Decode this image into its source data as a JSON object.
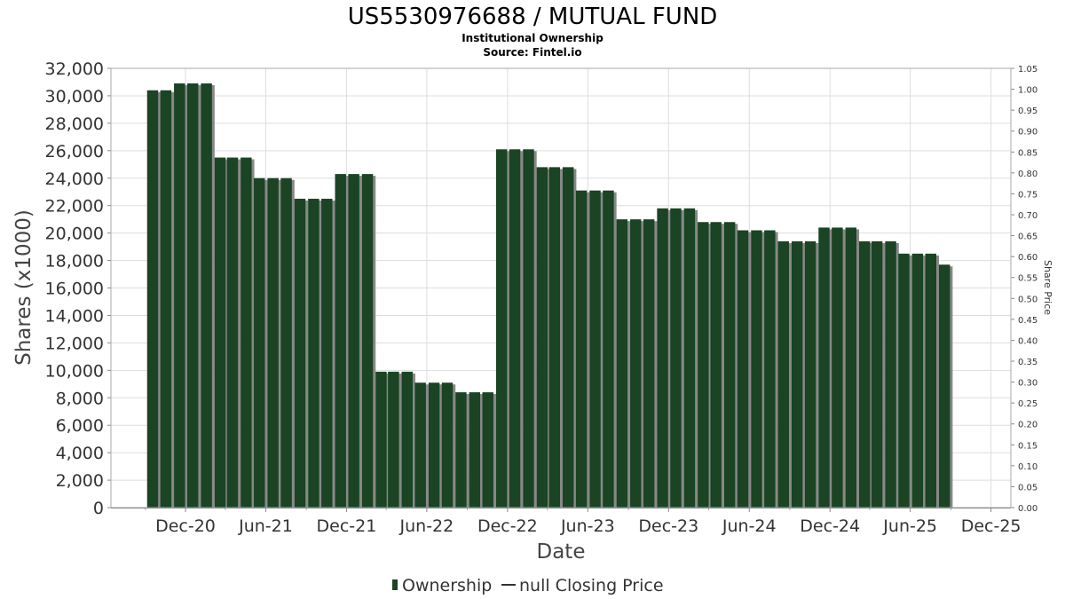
{
  "chart_data": {
    "type": "bar",
    "title": "US5530976688 / MUTUAL FUND",
    "subtitle": "Institutional Ownership",
    "source": "Source: Fintel.io",
    "xlabel": "Date",
    "ylabel": "Shares (x1000)",
    "y2label": "Share Price",
    "ylim": [
      0,
      32000
    ],
    "y2lim": [
      0,
      1.05
    ],
    "yticks": [
      "0",
      "2,000",
      "4,000",
      "6,000",
      "8,000",
      "10,000",
      "12,000",
      "14,000",
      "16,000",
      "18,000",
      "20,000",
      "22,000",
      "24,000",
      "26,000",
      "28,000",
      "30,000",
      "32,000"
    ],
    "y2ticks": [
      "0.00",
      "0.05",
      "0.10",
      "0.15",
      "0.20",
      "0.25",
      "0.30",
      "0.35",
      "0.40",
      "0.45",
      "0.50",
      "0.55",
      "0.60",
      "0.65",
      "0.70",
      "0.75",
      "0.80",
      "0.85",
      "0.90",
      "0.95",
      "1.00",
      "1.05"
    ],
    "xticks": [
      "Dec-20",
      "Jun-21",
      "Dec-21",
      "Jun-22",
      "Dec-22",
      "Jun-23",
      "Dec-23",
      "Jun-24",
      "Dec-24",
      "Jun-25",
      "Dec-25"
    ],
    "grid": true,
    "legend_placement": "bottom",
    "legend": [
      {
        "label": "Ownership",
        "kind": "bar"
      },
      {
        "label": "null Closing Price",
        "kind": "line"
      }
    ],
    "bar_color": "#1a4423",
    "bar_shadow_color": "#888888",
    "bar_start": "2020-09-30",
    "bar_step_months": 1,
    "values": [
      30400,
      30400,
      30900,
      30900,
      30900,
      25500,
      25500,
      25500,
      24000,
      24000,
      24000,
      22500,
      22500,
      22500,
      24300,
      24300,
      24300,
      9900,
      9900,
      9900,
      9100,
      9100,
      9100,
      8400,
      8400,
      8400,
      26100,
      26100,
      26100,
      24800,
      24800,
      24800,
      23100,
      23100,
      23100,
      21000,
      21000,
      21000,
      21800,
      21800,
      21800,
      20800,
      20800,
      20800,
      20200,
      20200,
      20200,
      19400,
      19400,
      19400,
      20400,
      20400,
      20400,
      19400,
      19400,
      19400,
      18500,
      18500,
      18500,
      17700
    ]
  }
}
